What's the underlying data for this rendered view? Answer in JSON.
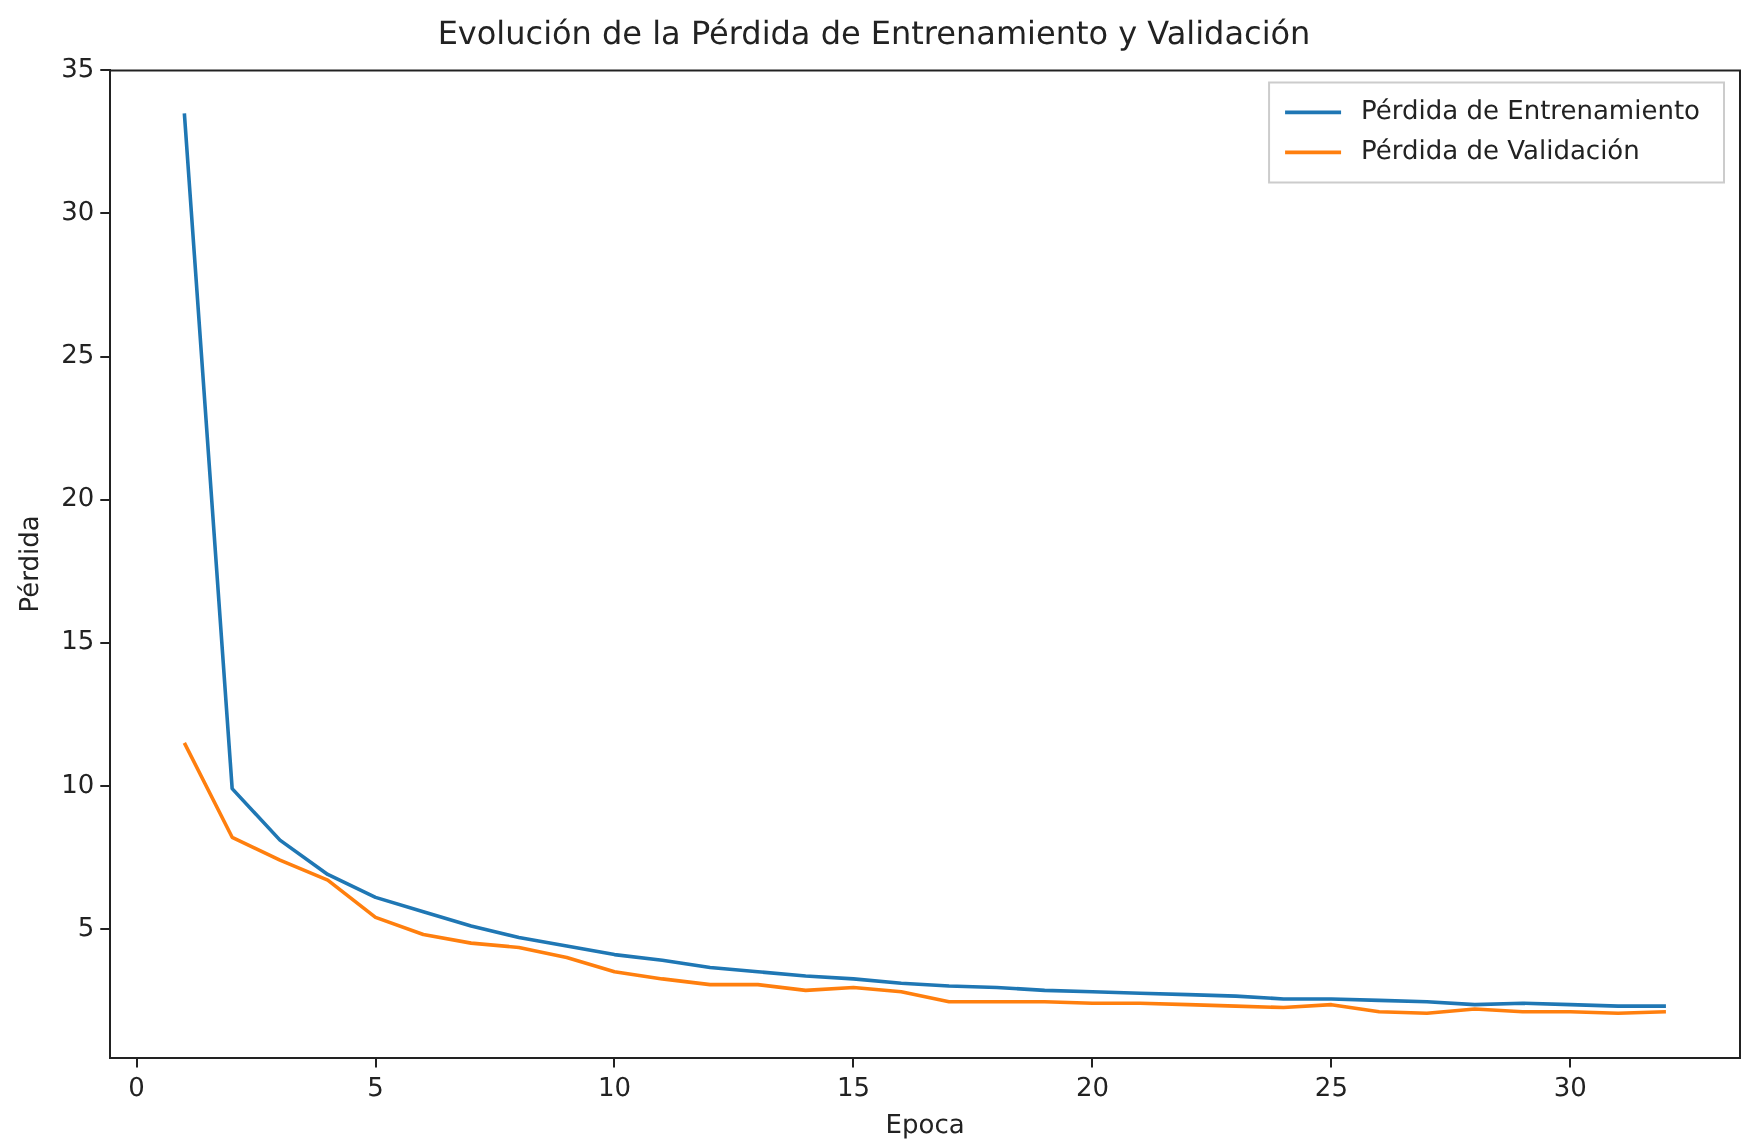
{
  "chart_data": {
    "type": "line",
    "title": "Evolución de la Pérdida de Entrenamiento y Validación",
    "xlabel": "Epoca",
    "ylabel": "Pérdida",
    "x": [
      1,
      2,
      3,
      4,
      5,
      6,
      7,
      8,
      9,
      10,
      11,
      12,
      13,
      14,
      15,
      16,
      17,
      18,
      19,
      20,
      21,
      22,
      23,
      24,
      25,
      26,
      27,
      28,
      29,
      30,
      31,
      32
    ],
    "series": [
      {
        "name": "Pérdida de Entrenamiento",
        "color": "#1f77b4",
        "values": [
          33.5,
          9.9,
          8.1,
          6.9,
          6.1,
          5.6,
          5.1,
          4.7,
          4.4,
          4.1,
          3.9,
          3.65,
          3.5,
          3.35,
          3.25,
          3.1,
          3.0,
          2.95,
          2.85,
          2.8,
          2.75,
          2.7,
          2.65,
          2.55,
          2.55,
          2.5,
          2.45,
          2.35,
          2.4,
          2.35,
          2.3,
          2.3
        ]
      },
      {
        "name": "Pérdida de Validación",
        "color": "#ff7f0e",
        "values": [
          11.5,
          8.2,
          7.4,
          6.7,
          5.4,
          4.8,
          4.5,
          4.35,
          4.0,
          3.5,
          3.25,
          3.05,
          3.05,
          2.85,
          2.95,
          2.8,
          2.45,
          2.45,
          2.45,
          2.4,
          2.4,
          2.35,
          2.3,
          2.25,
          2.35,
          2.1,
          2.05,
          2.2,
          2.1,
          2.1,
          2.05,
          2.1
        ]
      }
    ],
    "xlim": [
      -0.55,
      33.55
    ],
    "xticks": [
      0,
      5,
      10,
      15,
      20,
      25,
      30
    ],
    "ylim": [
      0.5,
      35
    ],
    "yticks": [
      5,
      10,
      15,
      20,
      25,
      30,
      35
    ],
    "grid": false,
    "legend": "top right",
    "marker": "none",
    "line_style": "solid"
  }
}
